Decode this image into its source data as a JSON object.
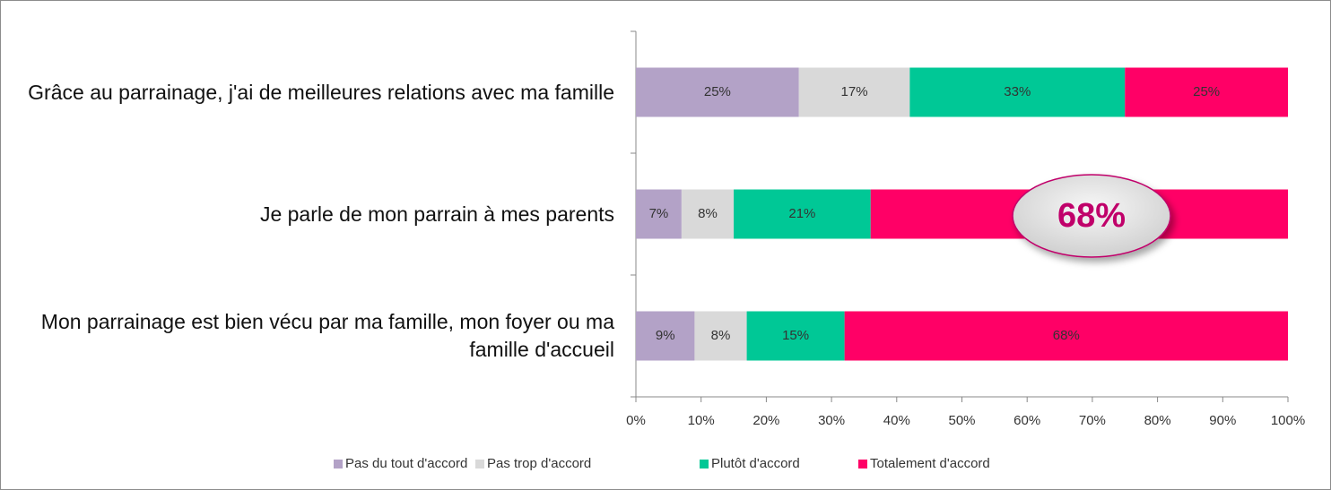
{
  "chart_data": {
    "type": "stacked-barh",
    "categories": [
      "Grâce au parrainage, j'ai de meilleures relations avec ma famille",
      "Je parle de mon parrain à mes parents",
      "Mon parrainage est bien vécu par ma famille, mon foyer ou ma famille d'accueil"
    ],
    "series": [
      {
        "name": "Pas du tout d'accord",
        "color": "#b3a2c7",
        "values": [
          25,
          7,
          9
        ],
        "value_labels": [
          "25%",
          "7%",
          "9%"
        ]
      },
      {
        "name": "Pas trop d'accord",
        "color": "#d9d9d9",
        "values": [
          17,
          8,
          8
        ],
        "value_labels": [
          "17%",
          "8%",
          "8%"
        ]
      },
      {
        "name": "Plutôt d'accord",
        "color": "#00c896",
        "values": [
          33,
          21,
          15
        ],
        "value_labels": [
          "33%",
          "21%",
          "15%"
        ]
      },
      {
        "name": "Totalement d'accord",
        "color": "#ff0066",
        "values": [
          25,
          64,
          68
        ],
        "value_labels": [
          "25%",
          null,
          "68%"
        ]
      }
    ],
    "xlim": [
      0,
      100
    ],
    "xticks": [
      {
        "value": 0,
        "label": "0%"
      },
      {
        "value": 10,
        "label": "10%"
      },
      {
        "value": 20,
        "label": "20%"
      },
      {
        "value": 30,
        "label": "30%"
      },
      {
        "value": 40,
        "label": "40%"
      },
      {
        "value": 50,
        "label": "50%"
      },
      {
        "value": 60,
        "label": "60%"
      },
      {
        "value": 70,
        "label": "70%"
      },
      {
        "value": 80,
        "label": "80%"
      },
      {
        "value": 90,
        "label": "90%"
      },
      {
        "value": 100,
        "label": "100%"
      }
    ],
    "grid": false,
    "legend": "bottom",
    "annotation": "68%"
  }
}
